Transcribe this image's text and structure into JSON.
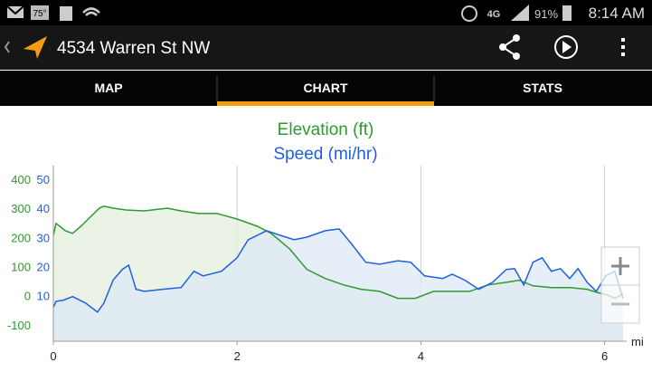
{
  "status_bar": {
    "temperature": "75°",
    "battery": "91%",
    "time": "8:14 AM"
  },
  "app_bar": {
    "title": "4534 Warren St NW"
  },
  "tabs": [
    "MAP",
    "CHART",
    "STATS"
  ],
  "chart_data": {
    "type": "line",
    "xlabel": "mi",
    "xlim": [
      0,
      6.24
    ],
    "xticks": [
      0,
      2,
      4,
      6
    ],
    "ylim": [
      -156,
      446
    ],
    "yticks": [
      -100,
      0,
      100,
      200,
      300,
      400
    ],
    "y2lim": [
      -5.6,
      54.6
    ],
    "y2ticks": [
      10,
      20,
      30,
      40,
      50
    ],
    "grid": true,
    "series": [
      {
        "name": "Elevation (ft)",
        "color": "#2e9a2e",
        "fill": "#e3efdc",
        "x": [
          0,
          0.03,
          0.07,
          0.13,
          0.21,
          0.3,
          0.4,
          0.5,
          0.55,
          0.65,
          0.79,
          0.99,
          1.24,
          1.39,
          1.58,
          1.78,
          2.0,
          2.22,
          2.37,
          2.57,
          2.76,
          2.96,
          3.16,
          3.35,
          3.55,
          3.75,
          3.94,
          4.14,
          4.34,
          4.53,
          4.73,
          4.93,
          5.07,
          5.22,
          5.42,
          5.62,
          5.81,
          5.91,
          6.03,
          6.11,
          6.2
        ],
        "values": [
          207,
          248,
          238,
          223,
          214,
          238,
          269,
          300,
          307,
          300,
          294,
          291,
          300,
          291,
          282,
          282,
          263,
          238,
          214,
          161,
          90,
          59,
          37,
          22,
          15,
          -9,
          -9,
          15,
          15,
          15,
          37,
          46,
          53,
          34,
          28,
          28,
          22,
          12,
          3,
          -9,
          6
        ]
      },
      {
        "name": "Speed (mi/hr)",
        "color": "#1f5fe0",
        "fill": "#dde8f5",
        "axis": "y2",
        "x": [
          0,
          0.03,
          0.11,
          0.21,
          0.35,
          0.48,
          0.55,
          0.65,
          0.75,
          0.82,
          0.9,
          0.99,
          1.19,
          1.39,
          1.53,
          1.63,
          1.83,
          2.0,
          2.12,
          2.32,
          2.47,
          2.62,
          2.76,
          2.96,
          3.11,
          3.25,
          3.4,
          3.55,
          3.75,
          3.89,
          4.04,
          4.24,
          4.34,
          4.48,
          4.63,
          4.78,
          4.93,
          5.02,
          5.12,
          5.22,
          5.32,
          5.42,
          5.52,
          5.62,
          5.71,
          5.81,
          5.91,
          6.01,
          6.11,
          6.2
        ],
        "values": [
          6,
          8.1,
          8.5,
          9.7,
          7.5,
          4.4,
          7.5,
          15.3,
          19,
          20.5,
          12.2,
          11.5,
          12.2,
          12.8,
          18.4,
          16.8,
          18.4,
          23,
          29.2,
          32.3,
          30.7,
          29.2,
          30.1,
          32.3,
          32.9,
          27.6,
          21.5,
          20.8,
          22,
          21.5,
          16.8,
          15.9,
          17.4,
          15.3,
          12.2,
          14.6,
          19,
          19.3,
          13.7,
          21.5,
          23,
          18.4,
          19.3,
          15.9,
          19.3,
          14.6,
          11.5,
          16.8,
          18.4,
          9.1
        ]
      }
    ]
  }
}
